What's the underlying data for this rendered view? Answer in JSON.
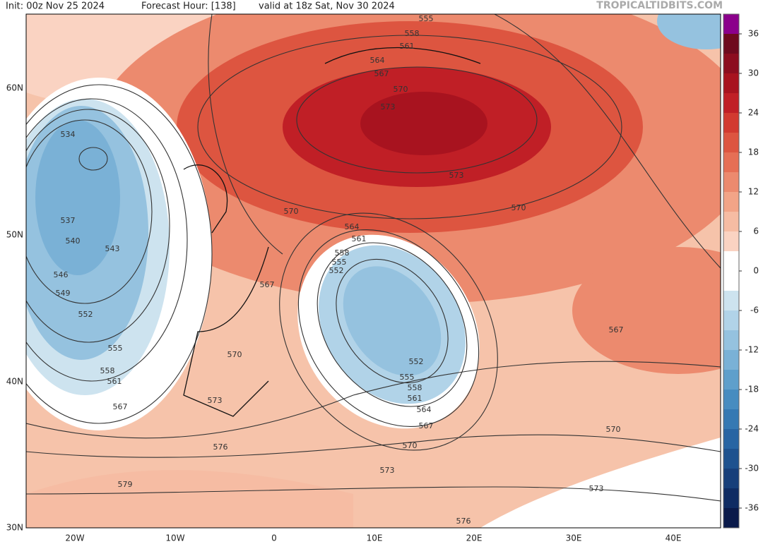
{
  "header": {
    "init": "Init: 00z Nov 25 2024",
    "forecast_hour": "Forecast Hour: [138]",
    "valid": "valid at 18z Sat, Nov 30 2024",
    "watermark": "TROPICALTIDBITS.COM"
  },
  "lat_labels": [
    "60N",
    "50N",
    "40N",
    "30N"
  ],
  "lon_labels": [
    "20W",
    "10W",
    "0",
    "10E",
    "20E",
    "30E",
    "40E"
  ],
  "colorbar": {
    "lim": [
      -39,
      39
    ],
    "ticks": [
      36,
      30,
      24,
      18,
      12,
      6,
      0,
      -6,
      -12,
      -18,
      -24,
      -30,
      -36
    ],
    "colors": [
      "#8b008b",
      "#6e0a1e",
      "#8c0d1f",
      "#a8131f",
      "#c01f26",
      "#d23a30",
      "#dd5540",
      "#e66f55",
      "#ec8a6e",
      "#f2a487",
      "#f6bca3",
      "#fad3c2",
      "#ffffff",
      "#ffffff",
      "#cde3ef",
      "#b1d3e8",
      "#95c2df",
      "#7ab1d6",
      "#5f9fcb",
      "#478cc0",
      "#3579b3",
      "#2865a3",
      "#1e528f",
      "#173f7a",
      "#0f2c63",
      "#0a1a4a"
    ]
  },
  "contour_labels": [
    555,
    558,
    561,
    564,
    567,
    570,
    573,
    573,
    570,
    570,
    564,
    561,
    558,
    555,
    552,
    567,
    534,
    537,
    540,
    543,
    546,
    549,
    552,
    555,
    558,
    561,
    567,
    570,
    573,
    576,
    579,
    552,
    555,
    558,
    561,
    564,
    567,
    570,
    573,
    567,
    570,
    573,
    576
  ]
}
